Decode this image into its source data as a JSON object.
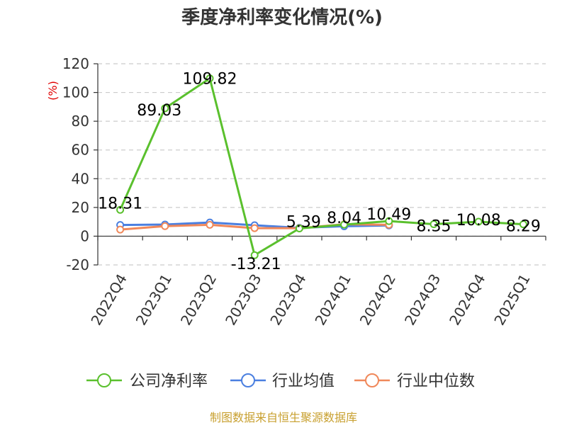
{
  "chart_data": {
    "type": "line",
    "title": "季度净利率变化情况(%)",
    "ylabel": "(%)",
    "xlabel": "",
    "ylim": [
      -20,
      120
    ],
    "yticks": [
      -20,
      0,
      20,
      40,
      60,
      80,
      100,
      120
    ],
    "grid": true,
    "legend_position": "bottom",
    "categories": [
      "2022Q4",
      "2023Q1",
      "2023Q2",
      "2023Q3",
      "2023Q4",
      "2024Q1",
      "2024Q2",
      "2024Q3",
      "2024Q4",
      "2025Q1"
    ],
    "series": [
      {
        "name": "公司净利率",
        "color": "#5ac02d",
        "values": [
          18.31,
          89.03,
          109.82,
          -13.21,
          5.39,
          8.04,
          10.49,
          8.35,
          10.08,
          8.29
        ],
        "labels": [
          "18.31",
          "89.03",
          "109.82",
          "-13.21",
          "5.39",
          "8.04",
          "10.49",
          "8.35",
          "10.08",
          "8.29"
        ]
      },
      {
        "name": "行业均值",
        "color": "#4a7fe0",
        "values": [
          7.8,
          8.1,
          9.5,
          7.6,
          5.8,
          6.9,
          7.5,
          null,
          null,
          null
        ]
      },
      {
        "name": "行业中位数",
        "color": "#f0885a",
        "values": [
          4.6,
          7.0,
          7.9,
          5.6,
          5.6,
          8.3,
          7.9,
          null,
          null,
          null
        ]
      }
    ]
  },
  "source": "制图数据来自恒生聚源数据库"
}
